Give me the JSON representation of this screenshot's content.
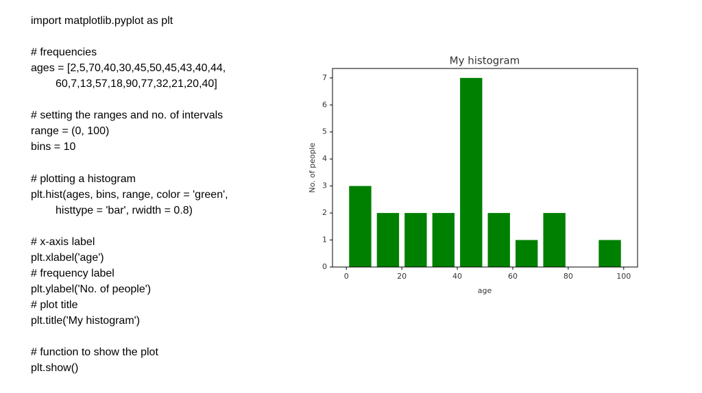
{
  "code": [
    [
      "import matplotlib.pyplot as plt"
    ],
    [
      "# frequencies",
      "ages = [2,5,70,40,30,45,50,45,43,40,44,",
      "60,7,13,57,18,90,77,32,21,20,40]"
    ],
    [
      "# setting the ranges and no. of intervals",
      "range = (0, 100)",
      "bins = 10"
    ],
    [
      "# plotting a histogram",
      "plt.hist(ages, bins, range, color = 'green',",
      "histtype = 'bar', rwidth = 0.8)"
    ],
    [
      "# x-axis label",
      "plt.xlabel('age')",
      "# frequency label",
      "plt.ylabel('No. of people')",
      "# plot title",
      "plt.title('My histogram')"
    ],
    [
      "# function to show the plot",
      "plt.show()"
    ]
  ],
  "chart_data": {
    "type": "histogram",
    "title": "My histogram",
    "x_label": "age",
    "y_label": "No. of people",
    "bins": [
      0,
      10,
      20,
      30,
      40,
      50,
      60,
      70,
      80,
      90,
      100
    ],
    "counts": [
      3,
      2,
      2,
      2,
      7,
      2,
      1,
      2,
      0,
      1
    ],
    "color": "green",
    "rwidth": 0.8,
    "xlim": [
      -5,
      105
    ],
    "xticks": [
      0,
      20,
      40,
      60,
      80,
      100
    ],
    "ylim": [
      0,
      7.35
    ],
    "yticks": [
      0,
      1,
      2,
      3,
      4,
      5,
      6,
      7
    ]
  }
}
